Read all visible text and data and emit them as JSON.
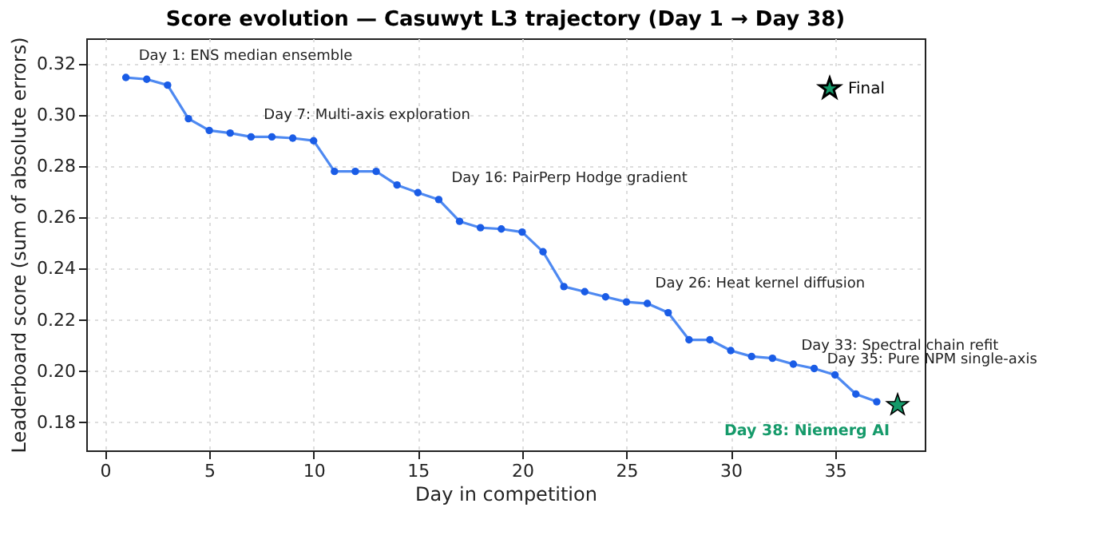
{
  "chart_data": {
    "type": "line",
    "title": "Score evolution — Casuwyt L3 trajectory (Day 1 → Day 38)",
    "xlabel": "Day in competition",
    "ylabel": "Leaderboard score (sum of absolute errors)",
    "series": [
      {
        "color": "#3b7cf0",
        "marker": "circle",
        "x": [
          1,
          2,
          3,
          4,
          5,
          6,
          7,
          8,
          9,
          10,
          11,
          12,
          13,
          14,
          15,
          16,
          17,
          18,
          19,
          20,
          21,
          22,
          23,
          24,
          25,
          26,
          27,
          28,
          29,
          30,
          31,
          32,
          33,
          34,
          35,
          36,
          37
        ],
        "values": [
          0.3147,
          0.314,
          0.3117,
          0.2986,
          0.294,
          0.293,
          0.2915,
          0.2915,
          0.291,
          0.29,
          0.278,
          0.278,
          0.278,
          0.2727,
          0.2697,
          0.267,
          0.2585,
          0.256,
          0.2555,
          0.2543,
          0.2466,
          0.233,
          0.231,
          0.229,
          0.227,
          0.2264,
          0.2228,
          0.2122,
          0.2122,
          0.208,
          0.2057,
          0.205,
          0.2027,
          0.201,
          0.1985,
          0.191,
          0.188
        ]
      },
      {
        "type": "scatter",
        "name": "Final",
        "color": "#159a6a",
        "marker": "star",
        "x": [
          38
        ],
        "values": [
          0.1867
        ]
      }
    ],
    "annotations": [
      {
        "text": "Day 1: ENS median ensemble",
        "x": 1,
        "y": 0.3147
      },
      {
        "text": "Day 7: Multi-axis exploration",
        "x": 7,
        "y": 0.2915
      },
      {
        "text": "Day 16: PairPerp Hodge gradient",
        "x": 16,
        "y": 0.267
      },
      {
        "text": "Day 26: Heat kernel diffusion",
        "x": 26,
        "y": 0.2264
      },
      {
        "text": "Day 33: Spectral chain refit",
        "x": 33,
        "y": 0.2027
      },
      {
        "text": "Day 35: Pure NPM single-axis",
        "x": 35,
        "y": 0.1985
      },
      {
        "text": "Day 38: Niemerg AI",
        "x": 38,
        "y": 0.1867
      }
    ],
    "xlim": [
      -0.9,
      39.3
    ],
    "xticks": [
      0,
      5,
      10,
      15,
      20,
      25,
      30,
      35
    ],
    "ylim": [
      0.169,
      0.33
    ],
    "yticks": [
      0.18,
      {
        "value": 0.2,
        "label": "0.20"
      },
      0.22,
      0.24,
      0.26,
      0.28,
      {
        "value": 0.3,
        "label": "0.30"
      },
      0.32
    ],
    "grid": true,
    "legend": "top right",
    "line_style": "solid"
  }
}
